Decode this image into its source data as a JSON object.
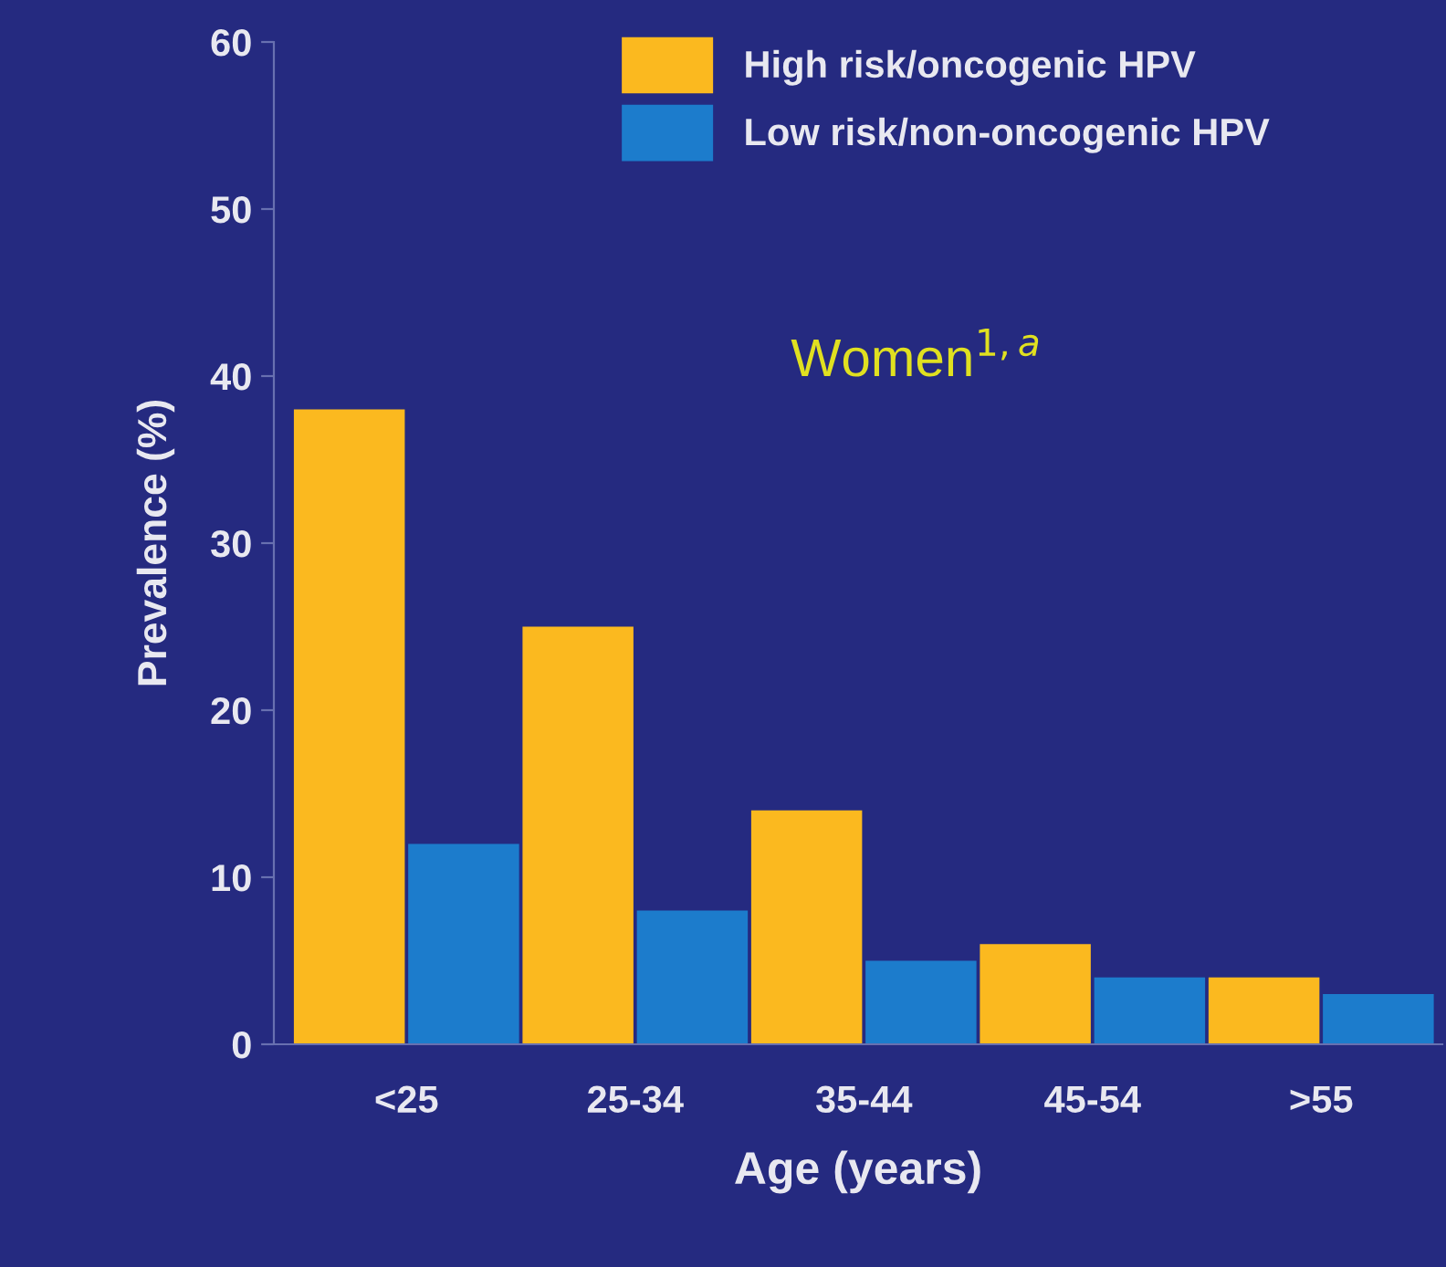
{
  "chart_data": {
    "type": "bar",
    "xlabel": "Age (years)",
    "ylabel": "Prevalence (%)",
    "categories": [
      "<25",
      "25-34",
      "35-44",
      "45-54",
      ">55"
    ],
    "series": [
      {
        "name": "High risk/oncogenic HPV",
        "color": "#fbb91f",
        "values": [
          38,
          25,
          14,
          6,
          4
        ]
      },
      {
        "name": "Low risk/non-oncogenic HPV",
        "color": "#1c7ccc",
        "values": [
          12,
          8,
          5,
          4,
          3
        ]
      }
    ],
    "ylim": [
      0,
      60
    ],
    "yticks": [
      0,
      10,
      20,
      30,
      40,
      50,
      60
    ],
    "annotations": [
      "Women$^{1,a}$"
    ],
    "grid": false,
    "legend": "top"
  }
}
